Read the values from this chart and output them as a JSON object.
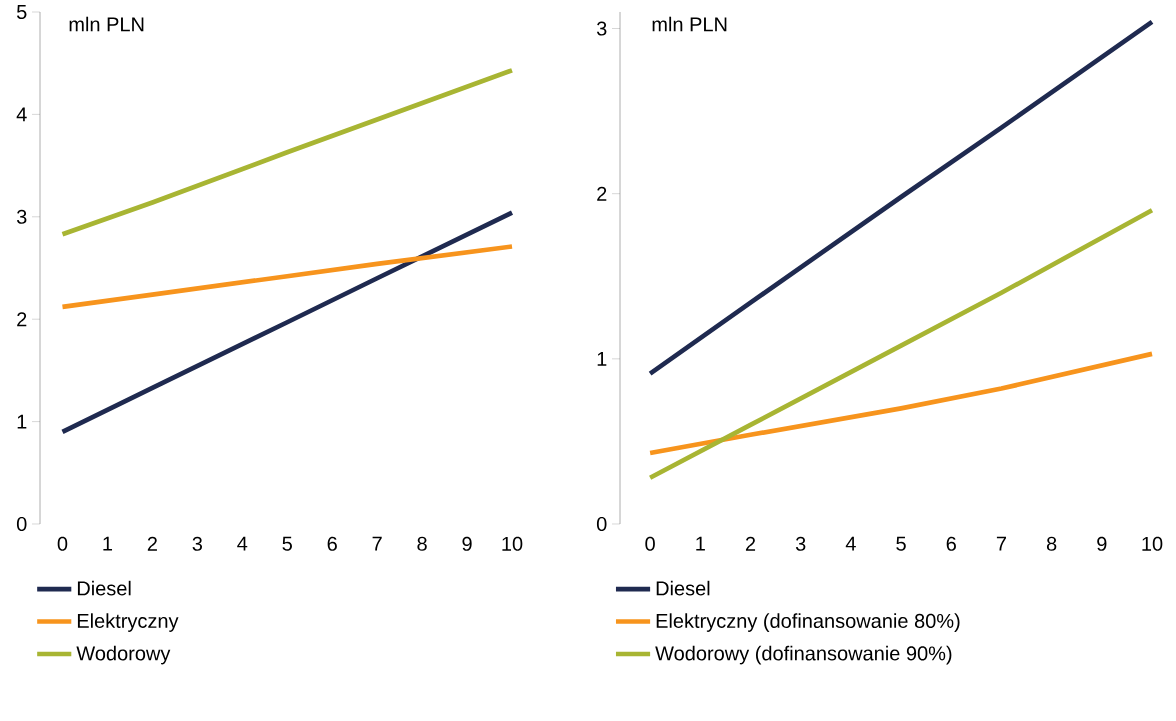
{
  "chart_data": [
    {
      "type": "line",
      "ylabel": "mln PLN",
      "x": [
        0,
        2,
        5,
        7,
        10
      ],
      "xlim": [
        -0.5,
        10
      ],
      "ylim": [
        0,
        5
      ],
      "xticks": [
        0,
        1,
        2,
        3,
        4,
        5,
        6,
        7,
        8,
        9,
        10
      ],
      "yticks": [
        0,
        1,
        2,
        3,
        4,
        5
      ],
      "legend": "bottom",
      "grid": false,
      "line_style": "solid",
      "marker": "none",
      "series": [
        {
          "name": "Diesel",
          "color": "#1f2a50",
          "values": [
            0.9,
            1.33,
            1.97,
            2.4,
            3.04
          ]
        },
        {
          "name": "Elektryczny",
          "color": "#f7941d",
          "values": [
            2.12,
            2.24,
            2.42,
            2.54,
            2.71
          ]
        },
        {
          "name": "Wodorowy",
          "color": "#a8b533",
          "values": [
            2.83,
            3.14,
            3.63,
            3.95,
            4.43
          ]
        }
      ]
    },
    {
      "type": "line",
      "ylabel": "mln PLN",
      "x": [
        0,
        2,
        5,
        7,
        10
      ],
      "xlim": [
        -0.6,
        10
      ],
      "ylim": [
        0,
        3.1
      ],
      "xticks": [
        0,
        1,
        2,
        3,
        4,
        5,
        6,
        7,
        8,
        9,
        10
      ],
      "yticks": [
        0,
        1,
        2,
        3
      ],
      "legend": "bottom",
      "grid": false,
      "line_style": "solid",
      "marker": "none",
      "series": [
        {
          "name": "Diesel",
          "color": "#1f2a50",
          "values": [
            0.91,
            1.34,
            1.98,
            2.4,
            3.04
          ]
        },
        {
          "name": "Elektryczny (dofinansowanie 80%)",
          "color": "#f7941d",
          "values": [
            0.43,
            0.54,
            0.7,
            0.82,
            1.03
          ]
        },
        {
          "name": "Wodorowy (dofinansowanie 90%)",
          "color": "#a8b533",
          "values": [
            0.28,
            0.6,
            1.08,
            1.4,
            1.9
          ]
        }
      ]
    }
  ]
}
